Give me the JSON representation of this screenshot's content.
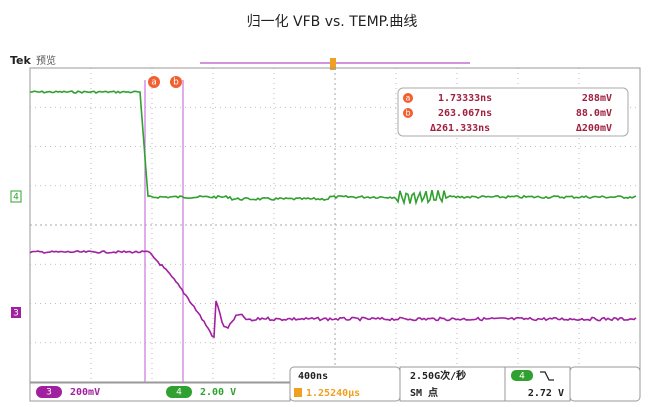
{
  "header": {
    "title": "归一化  VFB vs. TEMP.曲线"
  },
  "scope": {
    "brand": "Tek",
    "mode": "预览",
    "cursor_a": "a",
    "cursor_b": "b",
    "channel_4_marker": "4",
    "channel_3_marker": "3"
  },
  "readout": {
    "a_label": "a",
    "a_time": "1.73333ns",
    "a_value": "288mV",
    "b_label": "b",
    "b_time": "263.067ns",
    "b_value": "88.0mV",
    "delta_time": "Δ261.333ns",
    "delta_value": "Δ200mV"
  },
  "status": {
    "ch3_label": "3",
    "ch3_scale": "200mV",
    "ch4_label": "4",
    "ch4_scale": "2.00 V",
    "timebase": "400ns",
    "sample_rate": "2.50G次/秒",
    "position": "1.25240μs",
    "record": "SM 点",
    "trigger_channel": "4",
    "trigger_level": "2.72 V"
  }
}
